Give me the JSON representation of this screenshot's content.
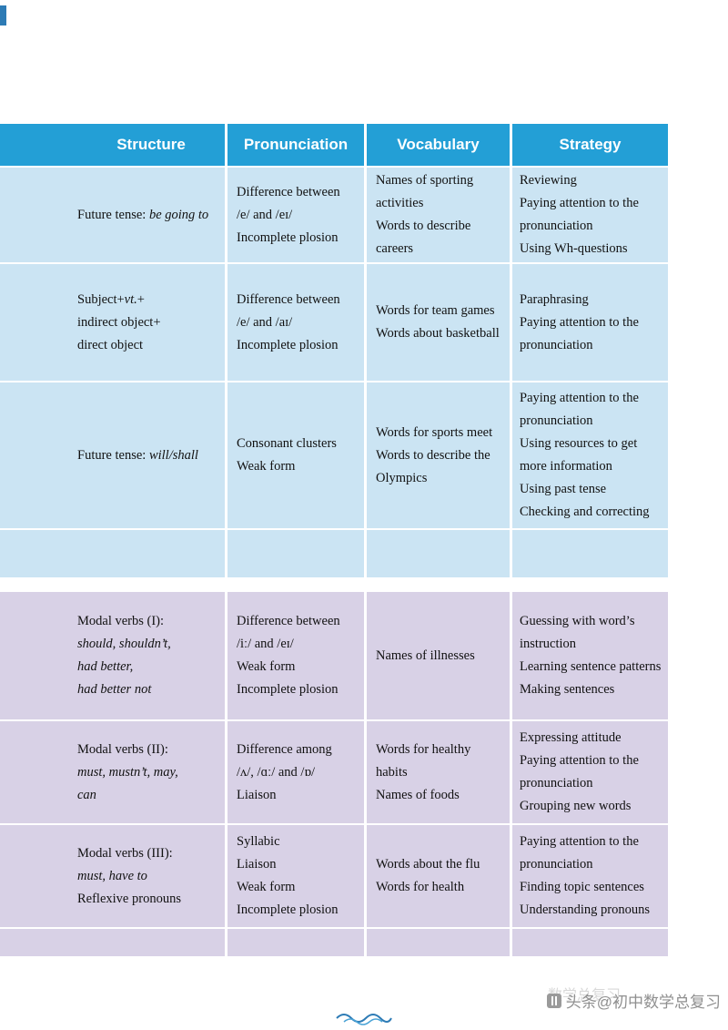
{
  "colors": {
    "header_bg": "#239fd6",
    "blue_row_bg": "#cbe4f3",
    "purple_row_bg": "#d8d1e6",
    "watermark": "#8f8f8f",
    "wave": "#2d7bb5"
  },
  "table": {
    "columns": [
      "Structure",
      "Pronunciation",
      "Vocabulary",
      "Strategy"
    ],
    "rows": [
      {
        "structure": [
          [
            {
              "t": "Future tense: "
            },
            {
              "t": "be going to",
              "i": true
            }
          ]
        ],
        "pronunciation": [
          [
            {
              "t": "Difference between"
            }
          ],
          [
            {
              "t": "/e/ and /eɪ/"
            }
          ],
          [
            {
              "t": "Incomplete plosion"
            }
          ]
        ],
        "vocabulary": [
          [
            {
              "t": "Names of sporting"
            }
          ],
          [
            {
              "t": "activities"
            }
          ],
          [
            {
              "t": "Words to describe"
            }
          ],
          [
            {
              "t": "careers"
            }
          ]
        ],
        "strategy": [
          [
            {
              "t": "Reviewing"
            }
          ],
          [
            {
              "t": "Paying attention to the"
            }
          ],
          [
            {
              "t": "pronunciation"
            }
          ],
          [
            {
              "t": "Using Wh-questions"
            }
          ]
        ]
      },
      {
        "structure": [
          [
            {
              "t": "Subject+"
            },
            {
              "t": "vt.",
              "i": true
            },
            {
              "t": "+"
            }
          ],
          [
            {
              "t": "indirect object+"
            }
          ],
          [
            {
              "t": "direct object"
            }
          ]
        ],
        "pronunciation": [
          [
            {
              "t": "Difference between"
            }
          ],
          [
            {
              "t": "/e/ and /aɪ/"
            }
          ],
          [
            {
              "t": "Incomplete plosion"
            }
          ]
        ],
        "vocabulary": [
          [
            {
              "t": "Words for team games"
            }
          ],
          [
            {
              "t": "Words about basketball"
            }
          ]
        ],
        "strategy": [
          [
            {
              "t": "Paraphrasing"
            }
          ],
          [
            {
              "t": "Paying attention to the"
            }
          ],
          [
            {
              "t": "pronunciation"
            }
          ]
        ]
      },
      {
        "structure": [
          [
            {
              "t": "Future tense: "
            },
            {
              "t": "will/shall",
              "i": true
            }
          ]
        ],
        "pronunciation": [
          [
            {
              "t": "Consonant clusters"
            }
          ],
          [
            {
              "t": "Weak form"
            }
          ]
        ],
        "vocabulary": [
          [
            {
              "t": "Words for sports meet"
            }
          ],
          [
            {
              "t": "Words to describe the"
            }
          ],
          [
            {
              "t": "Olympics"
            }
          ]
        ],
        "strategy": [
          [
            {
              "t": "Paying attention to the"
            }
          ],
          [
            {
              "t": "pronunciation"
            }
          ],
          [
            {
              "t": "Using resources to get"
            }
          ],
          [
            {
              "t": "more information"
            }
          ],
          [
            {
              "t": "Using past tense"
            }
          ],
          [
            {
              "t": "Checking and correcting"
            }
          ]
        ]
      },
      {
        "structure": [],
        "pronunciation": [],
        "vocabulary": [],
        "strategy": []
      },
      {
        "structure": [
          [
            {
              "t": "Modal verbs (I):"
            }
          ],
          [
            {
              "t": "should, shouldn’t,",
              "i": true
            }
          ],
          [
            {
              "t": "had better,",
              "i": true
            }
          ],
          [
            {
              "t": "had better not",
              "i": true
            }
          ]
        ],
        "pronunciation": [
          [
            {
              "t": "Difference between"
            }
          ],
          [
            {
              "t": "/iː/ and /eɪ/"
            }
          ],
          [
            {
              "t": "Weak form"
            }
          ],
          [
            {
              "t": "Incomplete plosion"
            }
          ]
        ],
        "vocabulary": [
          [
            {
              "t": "Names of illnesses"
            }
          ]
        ],
        "strategy": [
          [
            {
              "t": "Guessing with word’s"
            }
          ],
          [
            {
              "t": "instruction"
            }
          ],
          [
            {
              "t": "Learning sentence patterns"
            }
          ],
          [
            {
              "t": "Making sentences"
            }
          ]
        ]
      },
      {
        "structure": [
          [
            {
              "t": "Modal verbs (II):"
            }
          ],
          [
            {
              "t": "must, mustn’t, may,",
              "i": true
            }
          ],
          [
            {
              "t": "can",
              "i": true
            }
          ]
        ],
        "pronunciation": [
          [
            {
              "t": "Difference among"
            }
          ],
          [
            {
              "t": "/ʌ/, /ɑː/ and /ɒ/"
            }
          ],
          [
            {
              "t": "Liaison"
            }
          ]
        ],
        "vocabulary": [
          [
            {
              "t": "Words for healthy"
            }
          ],
          [
            {
              "t": "habits"
            }
          ],
          [
            {
              "t": "Names of foods"
            }
          ]
        ],
        "strategy": [
          [
            {
              "t": "Expressing attitude"
            }
          ],
          [
            {
              "t": "Paying attention to the"
            }
          ],
          [
            {
              "t": "pronunciation"
            }
          ],
          [
            {
              "t": "Grouping new words"
            }
          ]
        ]
      },
      {
        "structure": [
          [
            {
              "t": "Modal verbs (III):"
            }
          ],
          [
            {
              "t": "must, have to",
              "i": true
            }
          ],
          [
            {
              "t": "Reflexive pronouns"
            }
          ]
        ],
        "pronunciation": [
          [
            {
              "t": "Syllabic"
            }
          ],
          [
            {
              "t": "Liaison"
            }
          ],
          [
            {
              "t": "Weak form"
            }
          ],
          [
            {
              "t": "Incomplete plosion"
            }
          ]
        ],
        "vocabulary": [
          [
            {
              "t": "Words about the flu"
            }
          ],
          [
            {
              "t": "Words for health"
            }
          ]
        ],
        "strategy": [
          [
            {
              "t": "Paying attention to the"
            }
          ],
          [
            {
              "t": "pronunciation"
            }
          ],
          [
            {
              "t": "Finding topic sentences"
            }
          ],
          [
            {
              "t": "Understanding pronouns"
            }
          ]
        ]
      },
      {
        "structure": [],
        "pronunciation": [],
        "vocabulary": [],
        "strategy": []
      }
    ]
  },
  "watermark": {
    "text": "头条@初中数学总复习",
    "faint_text": "数学总复习"
  }
}
